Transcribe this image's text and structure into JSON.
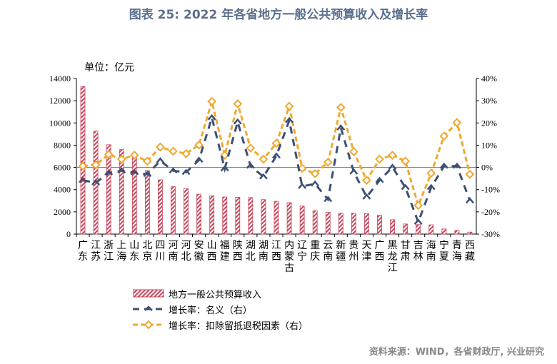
{
  "title": "图表 25: 2022 年各省地方一般公共预算收入及增长率",
  "unit": "单位：亿元",
  "source": "资料来源：WIND，各省财政厅, 兴业研究",
  "colors": {
    "bar": "#c8455a",
    "nominal": "#3d4f73",
    "excluding": "#f0a830",
    "title": "#5b6f8e"
  },
  "chart_data": {
    "type": "bar+line",
    "categories": [
      "广东",
      "江苏",
      "浙江",
      "上海",
      "山东",
      "北京",
      "四川",
      "河南",
      "河北",
      "安徽",
      "山西",
      "福建",
      "陕西",
      "湖北",
      "湖南",
      "江西",
      "内蒙古",
      "辽宁",
      "重庆",
      "云南",
      "新疆",
      "贵州",
      "天津",
      "广西",
      "黑龙江",
      "甘肃",
      "吉林",
      "海南",
      "宁夏",
      "青海",
      "西藏"
    ],
    "left_axis": {
      "range": [
        0,
        14000
      ],
      "ticks": [
        "0",
        "2000",
        "4000",
        "6000",
        "8000",
        "10000",
        "12000",
        "14000"
      ]
    },
    "right_axis": {
      "range": [
        -30,
        40
      ],
      "ticks": [
        "-30%",
        "-20%",
        "-10%",
        "0%",
        "10%",
        "20%",
        "30%",
        "40%"
      ]
    },
    "series": [
      {
        "name": "地方一般公共预算收入",
        "type": "bar",
        "axis": "left",
        "values": [
          13280,
          9259,
          8039,
          7608,
          7104,
          5714,
          4882,
          4262,
          4084,
          3589,
          3453,
          3340,
          3311,
          3281,
          3102,
          2948,
          2824,
          2524,
          2103,
          1950,
          1889,
          1886,
          1846,
          1688,
          1290,
          908,
          851,
          832,
          460,
          330,
          180
        ]
      },
      {
        "name": "增长率：名义（右）",
        "type": "line",
        "axis": "right",
        "values": [
          -5.8,
          -6.9,
          -2.4,
          -1.5,
          -2.3,
          -3.1,
          3.0,
          -1.5,
          -2.2,
          3.3,
          22.4,
          -0.6,
          20.5,
          0.6,
          -4.2,
          5.2,
          21.1,
          -8.5,
          -7.4,
          -14.4,
          17.8,
          -2.0,
          -13.3,
          -5.8,
          0.1,
          -9.0,
          -24.6,
          -9.0,
          0.6,
          0.6,
          -15.0
        ]
      },
      {
        "name": "增长率：扣除留抵退税因素（右）",
        "type": "line",
        "axis": "right",
        "values": [
          0.6,
          1.2,
          5.8,
          3.7,
          5.5,
          2.8,
          9.2,
          7.3,
          6.2,
          10.1,
          29.7,
          5.5,
          28.6,
          8.7,
          3.7,
          10.9,
          27.5,
          -0.4,
          -2.8,
          2.3,
          27.0,
          7.1,
          -5.8,
          3.7,
          5.5,
          2.8,
          -17.1,
          -2.6,
          14.1,
          20.2,
          -3.1
        ]
      }
    ],
    "legend_position": "bottom-left"
  }
}
